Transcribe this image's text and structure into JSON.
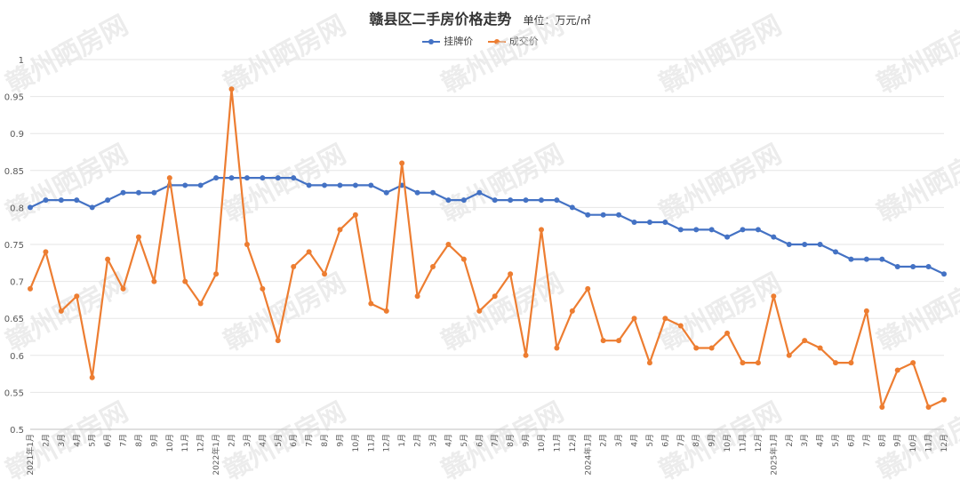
{
  "chart_data": {
    "type": "line",
    "title": "赣县区二手房价格走势",
    "unit_label": "单位：万元/㎡",
    "watermark": "赣州晒房网",
    "ylim": [
      0.5,
      1.0
    ],
    "yticks": [
      "0.5",
      "0.55",
      "0.6",
      "0.65",
      "0.7",
      "0.75",
      "0.8",
      "0.85",
      "0.9",
      "0.95",
      "1"
    ],
    "grid": true,
    "legend_position": "top-center",
    "categories": [
      "2021年1月",
      "2月",
      "3月",
      "4月",
      "5月",
      "6月",
      "7月",
      "8月",
      "9月",
      "10月",
      "11月",
      "12月",
      "2022年1月",
      "2月",
      "3月",
      "4月",
      "5月",
      "6月",
      "7月",
      "8月",
      "9月",
      "10月",
      "11月",
      "12月",
      "1月",
      "2月",
      "3月",
      "4月",
      "5月",
      "6月",
      "7月",
      "8月",
      "9月",
      "10月",
      "11月",
      "12月",
      "2024年1月",
      "2月",
      "3月",
      "4月",
      "5月",
      "6月",
      "7月",
      "8月",
      "9月",
      "10月",
      "11月",
      "12月",
      "2025年1月",
      "2月",
      "3月",
      "4月",
      "5月",
      "6月",
      "7月",
      "8月",
      "9月",
      "10月",
      "11月",
      "12月"
    ],
    "series": [
      {
        "name": "挂牌价",
        "color": "#4472c4",
        "values": [
          0.8,
          0.81,
          0.81,
          0.81,
          0.8,
          0.81,
          0.82,
          0.82,
          0.82,
          0.83,
          0.83,
          0.83,
          0.84,
          0.84,
          0.84,
          0.84,
          0.84,
          0.84,
          0.83,
          0.83,
          0.83,
          0.83,
          0.83,
          0.82,
          0.83,
          0.82,
          0.82,
          0.81,
          0.81,
          0.82,
          0.81,
          0.81,
          0.81,
          0.81,
          0.81,
          0.8,
          0.79,
          0.79,
          0.79,
          0.78,
          0.78,
          0.78,
          0.77,
          0.77,
          0.77,
          0.76,
          0.77,
          0.77,
          0.76,
          0.75,
          0.75,
          0.75,
          0.74,
          0.73,
          0.73,
          0.73,
          0.72,
          0.72,
          0.72,
          0.71
        ]
      },
      {
        "name": "成交价",
        "color": "#ed7d31",
        "values": [
          0.69,
          0.74,
          0.66,
          0.68,
          0.57,
          0.73,
          0.69,
          0.76,
          0.7,
          0.84,
          0.7,
          0.67,
          0.71,
          0.96,
          0.75,
          0.69,
          0.62,
          0.72,
          0.74,
          0.71,
          0.77,
          0.79,
          0.67,
          0.66,
          0.86,
          0.68,
          0.72,
          0.75,
          0.73,
          0.66,
          0.68,
          0.71,
          0.6,
          0.77,
          0.61,
          0.66,
          0.69,
          0.62,
          0.62,
          0.65,
          0.59,
          0.65,
          0.64,
          0.61,
          0.61,
          0.63,
          0.59,
          0.59,
          0.68,
          0.6,
          0.62,
          0.61,
          0.59,
          0.59,
          0.66,
          0.53,
          0.58,
          0.59,
          0.53,
          0.54
        ]
      }
    ]
  }
}
